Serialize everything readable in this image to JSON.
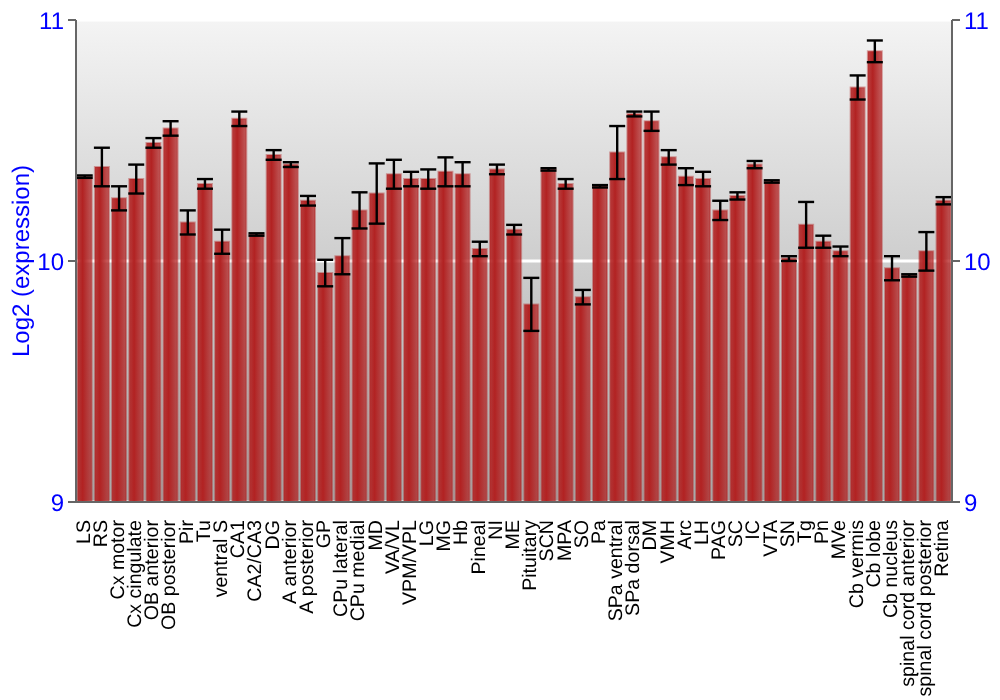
{
  "chart_data": {
    "type": "bar",
    "ylabel": "Log2 (expression)",
    "categories": [
      "LS",
      "RS",
      "Cx motor",
      "Cx cingulate",
      "OB anterior",
      "OB posterior",
      "Pir",
      "Tu",
      "ventral S",
      "CA1",
      "CA2/CA3",
      "DG",
      "A anterior",
      "A posterior",
      "GP",
      "CPu lateral",
      "CPu medial",
      "MD",
      "VA/VL",
      "VPM/VPL",
      "LG",
      "MG",
      "Hb",
      "Pineal",
      "NI",
      "ME",
      "Pituitary",
      "SCN",
      "MPA",
      "SO",
      "Pa",
      "SPa ventral",
      "SPa dorsal",
      "DM",
      "VMH",
      "Arc",
      "LH",
      "PAG",
      "SC",
      "IC",
      "VTA",
      "SN",
      "Tg",
      "Pn",
      "MVe",
      "Cb vermis",
      "Cb lobe",
      "Cb nucleus",
      "spinal cord anterior",
      "spinal cord posterior",
      "Retina"
    ],
    "series": [
      {
        "color": "#b22222",
        "values": [
          10.35,
          10.39,
          10.26,
          10.34,
          10.49,
          10.55,
          10.16,
          10.32,
          10.08,
          10.59,
          10.11,
          10.44,
          10.4,
          10.25,
          9.95,
          10.02,
          10.21,
          10.28,
          10.36,
          10.34,
          10.34,
          10.37,
          10.36,
          10.05,
          10.38,
          10.13,
          9.82,
          10.38,
          10.32,
          9.85,
          10.31,
          10.45,
          10.61,
          10.58,
          10.43,
          10.35,
          10.34,
          10.21,
          10.27,
          10.4,
          10.33,
          10.01,
          10.15,
          10.08,
          10.04,
          10.72,
          10.87,
          9.97,
          9.94,
          10.04,
          10.25
        ],
        "errors": [
          0.005,
          0.08,
          0.05,
          0.06,
          0.02,
          0.03,
          0.05,
          0.02,
          0.05,
          0.03,
          0.005,
          0.02,
          0.01,
          0.02,
          0.055,
          0.075,
          0.075,
          0.125,
          0.06,
          0.03,
          0.04,
          0.06,
          0.05,
          0.03,
          0.02,
          0.02,
          0.11,
          0.005,
          0.02,
          0.03,
          0.005,
          0.11,
          0.01,
          0.04,
          0.03,
          0.035,
          0.03,
          0.04,
          0.015,
          0.015,
          0.005,
          0.01,
          0.095,
          0.025,
          0.02,
          0.05,
          0.045,
          0.05,
          0.005,
          0.08,
          0.015
        ]
      }
    ],
    "ylim": [
      9,
      11
    ],
    "yticks": [
      9,
      10,
      11
    ],
    "y2lim": [
      9,
      11
    ],
    "y2ticks": [
      9,
      10,
      11
    ],
    "grid": "y",
    "legend": false
  }
}
